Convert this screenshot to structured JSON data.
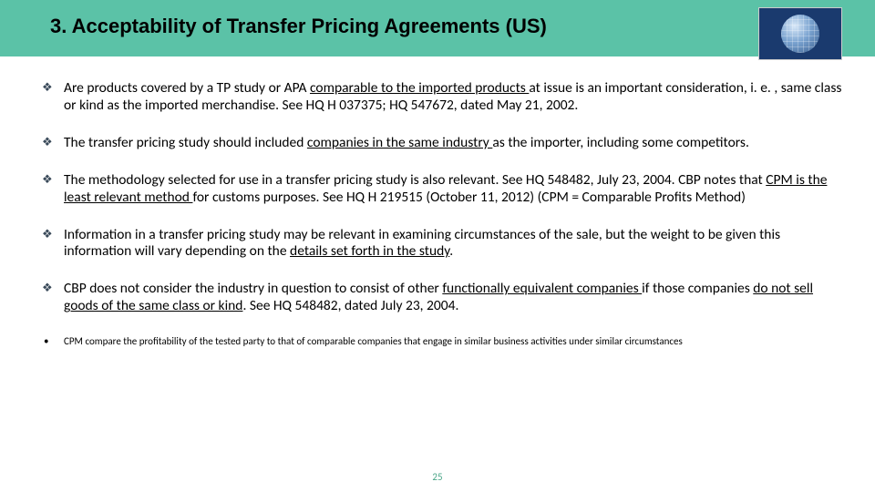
{
  "header": {
    "title": "3. Acceptability of Transfer Pricing Agreements (US)"
  },
  "bullets": [
    {
      "pre": "Are products covered by a TP study or APA ",
      "underline": "comparable to the imported products ",
      "post": "at issue is an important consideration, i. e. , same class or kind as the imported merchandise. See HQ H 037375; HQ 547672, dated May 21, 2002."
    },
    {
      "pre": "The transfer pricing study should included ",
      "underline": "companies in the same industry ",
      "post": "as the importer, including some competitors."
    },
    {
      "pre": "The methodology selected for use in a transfer pricing study is also relevant.  See HQ 548482, July 23, 2004.  CBP notes that ",
      "underline": "CPM is the least relevant method ",
      "post": "for customs purposes.  See HQ H 219515 (October 11, 2012) (CPM = Comparable Profits Method)"
    },
    {
      "pre": "Information in a transfer pricing study may be relevant in examining circumstances of the sale, but the weight to be given this information will vary depending on the ",
      "underline": "details set forth in the study",
      "post": "."
    },
    {
      "pre": "CBP does not consider the industry in question to consist of other ",
      "underline": "functionally equivalent companies ",
      "mid": "if those companies ",
      "underline2": "do not sell goods of the same class or kind",
      "post": ".  See HQ 548482, dated July 23, 2004."
    }
  ],
  "footnote": "CPM compare the profitability of the tested party to that of comparable companies that engage in similar business activities under similar circumstances",
  "pageNumber": "25",
  "colors": {
    "headerBg": "#5bc2a7",
    "pageNum": "#4aa688",
    "bulletMarker": "#3a4a5a",
    "logoBg": "#1a3a6e"
  }
}
